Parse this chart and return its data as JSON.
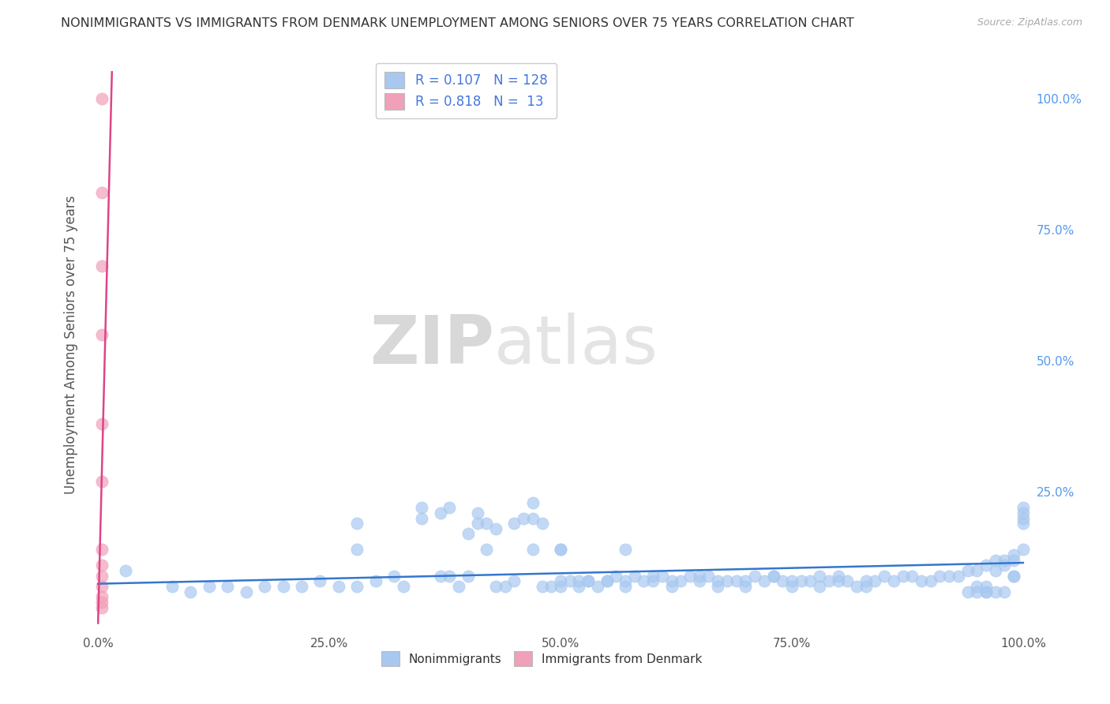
{
  "title": "NONIMMIGRANTS VS IMMIGRANTS FROM DENMARK UNEMPLOYMENT AMONG SENIORS OVER 75 YEARS CORRELATION CHART",
  "source": "Source: ZipAtlas.com",
  "ylabel": "Unemployment Among Seniors over 75 years",
  "xlim": [
    -0.01,
    1.01
  ],
  "ylim": [
    -0.02,
    1.08
  ],
  "x_tick_labels": [
    "0.0%",
    "25.0%",
    "50.0%",
    "75.0%",
    "100.0%"
  ],
  "x_tick_positions": [
    0.0,
    0.25,
    0.5,
    0.75,
    1.0
  ],
  "right_y_tick_labels": [
    "100.0%",
    "75.0%",
    "50.0%",
    "25.0%"
  ],
  "right_y_tick_positions": [
    1.0,
    0.75,
    0.5,
    0.25
  ],
  "blue_color": "#a8c8f0",
  "pink_color": "#f0a0b8",
  "blue_line_color": "#3377cc",
  "pink_line_color": "#dd4488",
  "legend_r_blue": "0.107",
  "legend_n_blue": "128",
  "legend_r_pink": "0.818",
  "legend_n_pink": "13",
  "watermark_zip": "ZIP",
  "watermark_atlas": "atlas",
  "background_color": "#ffffff",
  "grid_color": "#cccccc",
  "title_color": "#333333",
  "nonimmigrants_x": [
    0.03,
    0.08,
    0.1,
    0.12,
    0.14,
    0.16,
    0.18,
    0.2,
    0.22,
    0.24,
    0.26,
    0.28,
    0.3,
    0.32,
    0.33,
    0.35,
    0.37,
    0.38,
    0.39,
    0.4,
    0.4,
    0.41,
    0.42,
    0.43,
    0.44,
    0.45,
    0.45,
    0.46,
    0.47,
    0.48,
    0.48,
    0.49,
    0.5,
    0.5,
    0.51,
    0.52,
    0.52,
    0.53,
    0.54,
    0.55,
    0.55,
    0.56,
    0.57,
    0.57,
    0.58,
    0.59,
    0.6,
    0.6,
    0.61,
    0.62,
    0.62,
    0.63,
    0.64,
    0.65,
    0.65,
    0.66,
    0.67,
    0.67,
    0.68,
    0.69,
    0.7,
    0.7,
    0.71,
    0.72,
    0.73,
    0.73,
    0.74,
    0.75,
    0.75,
    0.76,
    0.77,
    0.78,
    0.78,
    0.79,
    0.8,
    0.8,
    0.81,
    0.82,
    0.83,
    0.83,
    0.84,
    0.85,
    0.86,
    0.87,
    0.88,
    0.89,
    0.9,
    0.91,
    0.92,
    0.93,
    0.94,
    0.95,
    0.96,
    0.97,
    0.97,
    0.98,
    0.98,
    0.99,
    0.99,
    1.0,
    1.0,
    1.0,
    1.0,
    1.0,
    0.28,
    0.35,
    0.42,
    0.43,
    0.47,
    0.5,
    0.53,
    0.57,
    0.28,
    0.37,
    0.38,
    0.41,
    0.47,
    0.5,
    0.99,
    0.99,
    0.98,
    0.97,
    0.96,
    0.96,
    0.95,
    0.94,
    0.95,
    0.96
  ],
  "nonimmigrants_y": [
    0.1,
    0.07,
    0.06,
    0.07,
    0.07,
    0.06,
    0.07,
    0.07,
    0.07,
    0.08,
    0.07,
    0.07,
    0.08,
    0.09,
    0.07,
    0.2,
    0.09,
    0.22,
    0.07,
    0.17,
    0.09,
    0.19,
    0.19,
    0.07,
    0.07,
    0.19,
    0.08,
    0.2,
    0.2,
    0.19,
    0.07,
    0.07,
    0.07,
    0.08,
    0.08,
    0.08,
    0.07,
    0.08,
    0.07,
    0.08,
    0.08,
    0.09,
    0.08,
    0.07,
    0.09,
    0.08,
    0.08,
    0.09,
    0.09,
    0.07,
    0.08,
    0.08,
    0.09,
    0.08,
    0.09,
    0.09,
    0.08,
    0.07,
    0.08,
    0.08,
    0.07,
    0.08,
    0.09,
    0.08,
    0.09,
    0.09,
    0.08,
    0.07,
    0.08,
    0.08,
    0.08,
    0.07,
    0.09,
    0.08,
    0.08,
    0.09,
    0.08,
    0.07,
    0.07,
    0.08,
    0.08,
    0.09,
    0.08,
    0.09,
    0.09,
    0.08,
    0.08,
    0.09,
    0.09,
    0.09,
    0.1,
    0.1,
    0.11,
    0.12,
    0.1,
    0.12,
    0.11,
    0.13,
    0.12,
    0.14,
    0.22,
    0.21,
    0.2,
    0.19,
    0.14,
    0.22,
    0.14,
    0.18,
    0.14,
    0.14,
    0.08,
    0.14,
    0.19,
    0.21,
    0.09,
    0.21,
    0.23,
    0.14,
    0.09,
    0.09,
    0.06,
    0.06,
    0.06,
    0.06,
    0.06,
    0.06,
    0.07,
    0.07
  ],
  "immigrants_x": [
    0.004,
    0.004,
    0.004,
    0.004,
    0.004,
    0.004,
    0.004,
    0.004,
    0.004,
    0.004,
    0.004,
    0.004,
    0.004
  ],
  "immigrants_y": [
    1.0,
    0.82,
    0.68,
    0.55,
    0.38,
    0.27,
    0.14,
    0.11,
    0.09,
    0.07,
    0.05,
    0.04,
    0.03
  ],
  "blue_trend_x": [
    0.0,
    1.0
  ],
  "blue_trend_y": [
    0.075,
    0.115
  ],
  "pink_trend_x": [
    0.0,
    0.015
  ],
  "pink_trend_y": [
    0.0,
    1.05
  ]
}
